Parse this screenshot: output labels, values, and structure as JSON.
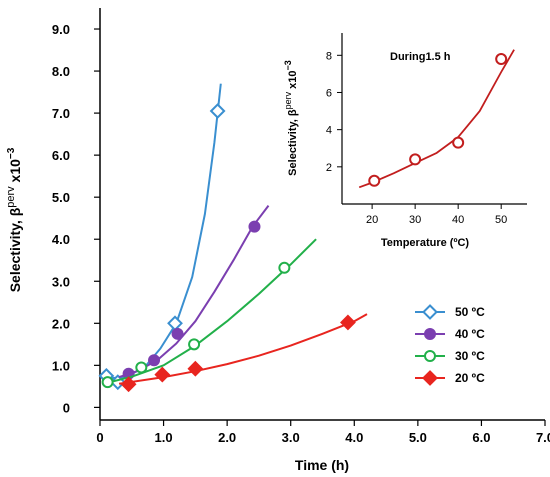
{
  "chart_data": [
    {
      "type": "line",
      "xlabel": "Time (h)",
      "ylabel": "Selectivity, β",
      "ylabel_sup": "perv",
      "ylabel_suffix": " x10",
      "ylabel_exp": "−3",
      "xlim": [
        0,
        7
      ],
      "ylim": [
        -0.3,
        9.5
      ],
      "x_ticks": [
        "0",
        "1.0",
        "2.0",
        "3.0",
        "4.0",
        "5.0",
        "6.0",
        "7.0"
      ],
      "y_ticks": [
        "0",
        "1.0",
        "2.0",
        "3.0",
        "4.0",
        "5.0",
        "6.0",
        "7.0",
        "8.0",
        "9.0"
      ],
      "legend_position": "lower-right",
      "series": [
        {
          "name": "50 ºC",
          "color": "#3a8fd0",
          "marker": "open-diamond",
          "points": [
            [
              0.1,
              0.75
            ],
            [
              0.28,
              0.6
            ],
            [
              1.18,
              2.0
            ],
            [
              1.85,
              7.05
            ]
          ],
          "fit": [
            [
              0.05,
              0.68
            ],
            [
              0.4,
              0.72
            ],
            [
              0.7,
              0.95
            ],
            [
              0.95,
              1.4
            ],
            [
              1.2,
              2.0
            ],
            [
              1.45,
              3.1
            ],
            [
              1.65,
              4.6
            ],
            [
              1.8,
              6.3
            ],
            [
              1.9,
              7.7
            ]
          ]
        },
        {
          "name": "40 ºC",
          "color": "#7b3fb0",
          "marker": "filled-circle",
          "points": [
            [
              0.45,
              0.8
            ],
            [
              0.85,
              1.12
            ],
            [
              1.22,
              1.75
            ],
            [
              2.43,
              4.3
            ]
          ],
          "fit": [
            [
              0.3,
              0.72
            ],
            [
              0.6,
              0.87
            ],
            [
              0.9,
              1.12
            ],
            [
              1.2,
              1.52
            ],
            [
              1.5,
              2.05
            ],
            [
              1.8,
              2.75
            ],
            [
              2.1,
              3.5
            ],
            [
              2.4,
              4.3
            ],
            [
              2.65,
              4.8
            ]
          ]
        },
        {
          "name": "30 ºC",
          "color": "#22b04a",
          "marker": "open-circle",
          "points": [
            [
              0.12,
              0.6
            ],
            [
              0.65,
              0.95
            ],
            [
              1.48,
              1.5
            ],
            [
              2.9,
              3.32
            ]
          ],
          "fit": [
            [
              0.1,
              0.58
            ],
            [
              0.5,
              0.73
            ],
            [
              1.0,
              1.0
            ],
            [
              1.5,
              1.47
            ],
            [
              2.0,
              2.05
            ],
            [
              2.5,
              2.7
            ],
            [
              3.0,
              3.4
            ],
            [
              3.4,
              4.0
            ]
          ]
        },
        {
          "name": "20 ºC",
          "color": "#e8251f",
          "marker": "filled-diamond",
          "points": [
            [
              0.45,
              0.55
            ],
            [
              0.98,
              0.78
            ],
            [
              1.5,
              0.92
            ],
            [
              3.9,
              2.02
            ]
          ],
          "fit": [
            [
              0.3,
              0.56
            ],
            [
              1.0,
              0.72
            ],
            [
              1.5,
              0.86
            ],
            [
              2.0,
              1.03
            ],
            [
              2.5,
              1.23
            ],
            [
              3.0,
              1.47
            ],
            [
              3.5,
              1.75
            ],
            [
              4.0,
              2.05
            ],
            [
              4.2,
              2.22
            ]
          ]
        }
      ]
    },
    {
      "type": "scatter",
      "title": "During1.5 h",
      "xlabel": "Temperature (ºC)",
      "ylabel": "Selectivity, β",
      "ylabel_sup": "perv",
      "ylabel_suffix": " x10",
      "ylabel_exp": "−3",
      "xlim": [
        13,
        56
      ],
      "ylim": [
        0,
        9.2
      ],
      "x_ticks": [
        "20",
        "30",
        "40",
        "50"
      ],
      "y_ticks": [
        "2",
        "4",
        "6",
        "8"
      ],
      "series": [
        {
          "color": "#c21e1e",
          "marker": "open-circle",
          "points": [
            [
              20.5,
              1.25
            ],
            [
              30,
              2.4
            ],
            [
              40,
              3.3
            ],
            [
              50,
              7.8
            ]
          ],
          "fit": [
            [
              17,
              0.9
            ],
            [
              20,
              1.15
            ],
            [
              25,
              1.65
            ],
            [
              30,
              2.2
            ],
            [
              35,
              2.75
            ],
            [
              40,
              3.6
            ],
            [
              45,
              5.0
            ],
            [
              50,
              7.1
            ],
            [
              53,
              8.3
            ]
          ]
        }
      ]
    }
  ]
}
